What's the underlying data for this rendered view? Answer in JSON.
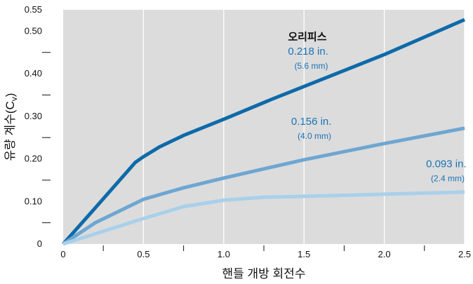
{
  "chart_data": {
    "type": "line",
    "xlabel": "핸들 개방 회전수",
    "ylabel": "유량 계수(C",
    "ylabel_subscript": "v",
    "ylabel_close": ")",
    "xlim": [
      0,
      2.5
    ],
    "ylim": [
      0,
      0.55
    ],
    "x_ticks": [
      0,
      0.5,
      1.0,
      1.5,
      2.0,
      2.5
    ],
    "x_tick_labels": [
      "0",
      "0.5",
      "1.0",
      "1.5",
      "2.0",
      "2.5"
    ],
    "y_ticks": [
      0,
      0.1,
      0.2,
      0.3,
      0.4,
      0.5,
      0.55
    ],
    "y_tick_labels": [
      "0",
      "0.10",
      "0.20",
      "0.30",
      "0.40",
      "0.50",
      "0.55"
    ],
    "grid": true,
    "background": "#dcdcdd",
    "series": [
      {
        "color": "#0e6aa8",
        "x": [
          0,
          0.2,
          0.45,
          0.5,
          0.6,
          0.75,
          1.0,
          1.3,
          1.5,
          2.0,
          2.5
        ],
        "y": [
          0,
          0.085,
          0.192,
          0.205,
          0.228,
          0.255,
          0.293,
          0.34,
          0.37,
          0.445,
          0.527
        ]
      },
      {
        "color": "#6ea6d1",
        "x": [
          0,
          0.2,
          0.5,
          0.75,
          1.0,
          1.5,
          2.0,
          2.5
        ],
        "y": [
          0,
          0.05,
          0.105,
          0.132,
          0.155,
          0.198,
          0.236,
          0.272
        ]
      },
      {
        "color": "#a9d0ea",
        "x": [
          0,
          0.25,
          0.5,
          0.75,
          1.0,
          1.25,
          1.5,
          2.0,
          2.5
        ],
        "y": [
          0,
          0.03,
          0.06,
          0.088,
          0.103,
          0.11,
          0.112,
          0.117,
          0.122
        ]
      }
    ],
    "annotations": [
      {
        "text": "오리피스",
        "style": "title",
        "color": "#111111",
        "x": 1.4,
        "y": 0.478
      },
      {
        "text": "0.218 in.",
        "style": "main",
        "color": "#1a73b5",
        "x": 1.4,
        "y": 0.445
      },
      {
        "text": "(5.6 mm)",
        "style": "sub",
        "color": "#1a73b5",
        "x": 1.44,
        "y": 0.412
      },
      {
        "text": "0.156 in.",
        "style": "main",
        "color": "#1a73b5",
        "x": 1.42,
        "y": 0.28
      },
      {
        "text": "(4.0 mm)",
        "style": "sub",
        "color": "#1a73b5",
        "x": 1.46,
        "y": 0.247
      },
      {
        "text": "0.093 in.",
        "style": "main",
        "color": "#1a73b5",
        "x": 2.26,
        "y": 0.18
      },
      {
        "text": "(2.4 mm)",
        "style": "sub",
        "color": "#1a73b5",
        "x": 2.29,
        "y": 0.147
      }
    ]
  }
}
